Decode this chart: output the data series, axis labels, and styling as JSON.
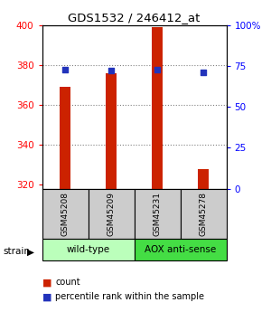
{
  "title": "GDS1532 / 246412_at",
  "samples": [
    "GSM45208",
    "GSM45209",
    "GSM45231",
    "GSM45278"
  ],
  "count_values": [
    369,
    376,
    399,
    328
  ],
  "percentile_values": [
    73,
    72,
    73,
    71
  ],
  "ymin": 318,
  "ymax": 400,
  "yticks": [
    320,
    340,
    360,
    380,
    400
  ],
  "y2min": 0,
  "y2max": 100,
  "y2ticks": [
    0,
    25,
    50,
    75,
    100
  ],
  "y2ticklabels": [
    "0",
    "25",
    "50",
    "75",
    "100%"
  ],
  "bar_color": "#cc2200",
  "dot_color": "#2233bb",
  "group_colors_wt": "#bbffbb",
  "group_colors_aox": "#44dd44",
  "sample_box_color": "#cccccc",
  "bar_width": 0.25,
  "legend_count_color": "#cc2200",
  "legend_dot_color": "#2233bb",
  "legend_count_label": "count",
  "legend_percentile_label": "percentile rank within the sample"
}
